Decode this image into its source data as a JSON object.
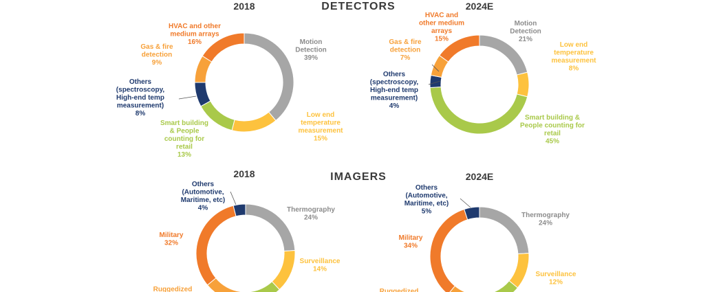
{
  "sections": [
    {
      "title": "DETECTORS"
    },
    {
      "title": "IMAGERS"
    }
  ],
  "colors": {
    "gray": "#a6a6a6",
    "yellow": "#fdc23e",
    "green": "#a9c94a",
    "navy": "#1f3a6e",
    "orange_light": "#f7a13a",
    "orange": "#f07a2a",
    "heading": "#3a3a3a"
  },
  "chart_data": [
    {
      "type": "pie",
      "title": "2018",
      "section": "DETECTORS",
      "slices": [
        {
          "label": [
            "Motion",
            "Detection"
          ],
          "value": 39,
          "value_text": "39%",
          "color": "gray"
        },
        {
          "label": [
            "Low end",
            "temperature",
            "measurement"
          ],
          "value": 15,
          "value_text": "15%",
          "color": "yellow"
        },
        {
          "label": [
            "Smart building",
            "& People",
            "counting for",
            "retail"
          ],
          "value": 13,
          "value_text": "13%",
          "color": "green"
        },
        {
          "label": [
            "Others",
            "(spectroscopy,",
            "High-end temp",
            "measurement)"
          ],
          "value": 8,
          "value_text": "8%",
          "color": "navy"
        },
        {
          "label": [
            "Gas & fire",
            "detection"
          ],
          "value": 9,
          "value_text": "9%",
          "color": "orange_light"
        },
        {
          "label": [
            "HVAC and other",
            "medium arrays"
          ],
          "value": 16,
          "value_text": "16%",
          "color": "orange"
        }
      ]
    },
    {
      "type": "pie",
      "title": "2024E",
      "section": "DETECTORS",
      "slices": [
        {
          "label": [
            "Motion",
            "Detection"
          ],
          "value": 21,
          "value_text": "21%",
          "color": "gray"
        },
        {
          "label": [
            "Low end",
            "temperature",
            "measurement"
          ],
          "value": 8,
          "value_text": "8%",
          "color": "yellow"
        },
        {
          "label": [
            "Smart building &",
            "People counting for",
            "retail"
          ],
          "value": 45,
          "value_text": "45%",
          "color": "green"
        },
        {
          "label": [
            "Others",
            "(spectroscopy,",
            "High-end temp",
            "measurement)"
          ],
          "value": 4,
          "value_text": "4%",
          "color": "navy"
        },
        {
          "label": [
            "Gas & fire",
            "detection"
          ],
          "value": 7,
          "value_text": "7%",
          "color": "orange_light"
        },
        {
          "label": [
            "HVAC and",
            "other medium",
            "arrays"
          ],
          "value": 15,
          "value_text": "15%",
          "color": "orange"
        }
      ]
    },
    {
      "type": "pie",
      "title": "2018",
      "section": "IMAGERS",
      "slices": [
        {
          "label": [
            "Thermography"
          ],
          "value": 24,
          "value_text": "24%",
          "color": "gray"
        },
        {
          "label": [
            "Surveillance"
          ],
          "value": 14,
          "value_text": "14%",
          "color": "yellow"
        },
        {
          "label": [],
          "value": 14,
          "value_text": "",
          "color": "green"
        },
        {
          "label": [
            "Ruggedized"
          ],
          "value": 12,
          "value_text": "",
          "color": "orange_light"
        },
        {
          "label": [
            "Military"
          ],
          "value": 32,
          "value_text": "32%",
          "color": "orange"
        },
        {
          "label": [
            "Others",
            "(Automotive,",
            "Maritime, etc)"
          ],
          "value": 4,
          "value_text": "4%",
          "color": "navy"
        }
      ]
    },
    {
      "type": "pie",
      "title": "2024E",
      "section": "IMAGERS",
      "slices": [
        {
          "label": [
            "Thermography"
          ],
          "value": 24,
          "value_text": "24%",
          "color": "gray"
        },
        {
          "label": [
            "Surveillance"
          ],
          "value": 12,
          "value_text": "12%",
          "color": "yellow"
        },
        {
          "label": [],
          "value": 15,
          "value_text": "",
          "color": "green"
        },
        {
          "label": [
            "Ruggedized"
          ],
          "value": 10,
          "value_text": "",
          "color": "orange_light"
        },
        {
          "label": [
            "Military"
          ],
          "value": 34,
          "value_text": "34%",
          "color": "orange"
        },
        {
          "label": [
            "Others",
            "(Automotive,",
            "Maritime, etc)"
          ],
          "value": 5,
          "value_text": "5%",
          "color": "navy"
        }
      ]
    }
  ]
}
